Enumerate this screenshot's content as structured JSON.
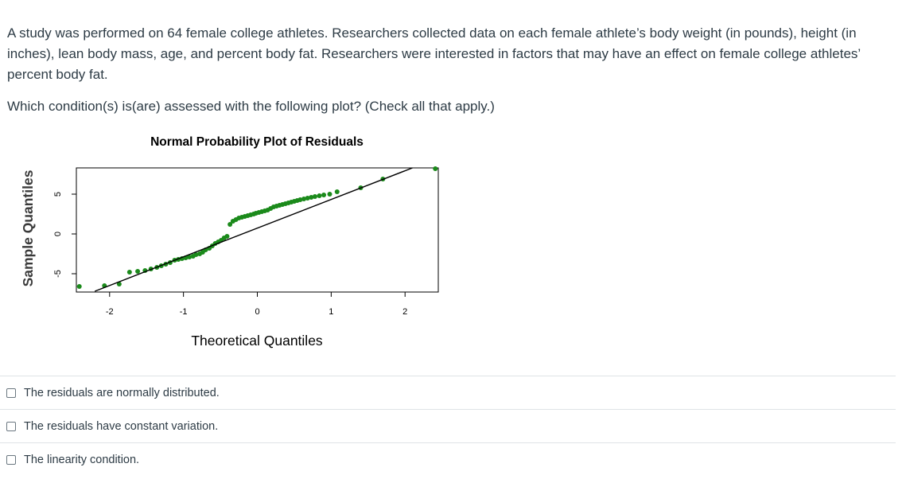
{
  "question": {
    "stem": "A study was performed on 64 female college athletes. Researchers collected data on each female athlete’s body weight (in pounds), height (in inches), lean body mass, age, and percent body fat. Researchers were interested in factors that may have an effect on female college athletes’ percent body fat.",
    "prompt": "Which condition(s) is(are) assessed with the following plot? (Check all that apply.)"
  },
  "answers": [
    {
      "label": "The residuals are normally distributed.",
      "checked": false
    },
    {
      "label": "The residuals have constant variation.",
      "checked": false
    },
    {
      "label": "The linearity condition.",
      "checked": false
    }
  ],
  "chart_data": {
    "type": "scatter",
    "title": "Normal Probability Plot of Residuals",
    "xlabel": "Theoretical Quantiles",
    "ylabel": "Sample Quantiles",
    "xlim": [
      -2.45,
      2.45
    ],
    "ylim": [
      -7.3,
      8.3
    ],
    "x_ticks": [
      "-2",
      "-1",
      "0",
      "1",
      "2"
    ],
    "x_tick_values": [
      -2,
      -1,
      0,
      1,
      2
    ],
    "y_ticks": [
      "-5",
      "0",
      "5"
    ],
    "y_tick_values": [
      -5,
      0,
      5
    ],
    "point_color": "#1b8a1b",
    "reference_line": {
      "x": [
        -2.2,
        2.1
      ],
      "y": [
        -7.2,
        8.3
      ]
    },
    "series": [
      {
        "x": [
          -2.41,
          -2.07,
          -1.87,
          -1.73,
          -1.62,
          -1.52,
          -1.44,
          -1.36,
          -1.3,
          -1.24,
          -1.18,
          -1.12,
          -1.07,
          -1.02,
          -0.97,
          -0.92,
          -0.87,
          -0.83,
          -0.78,
          -0.74,
          -0.7,
          -0.65,
          -0.61,
          -0.57,
          -0.53,
          -0.49,
          -0.45,
          -0.41,
          -0.37,
          -0.33,
          -0.29,
          -0.25,
          -0.21,
          -0.17,
          -0.13,
          -0.09,
          -0.05,
          -0.02,
          0.02,
          0.06,
          0.1,
          0.14,
          0.18,
          0.22,
          0.26,
          0.3,
          0.34,
          0.38,
          0.42,
          0.46,
          0.5,
          0.54,
          0.58,
          0.63,
          0.68,
          0.73,
          0.78,
          0.84,
          0.9,
          0.98,
          1.08,
          1.4,
          1.7,
          2.41
        ],
        "y": [
          -6.6,
          -6.5,
          -6.3,
          -4.8,
          -4.7,
          -4.6,
          -4.4,
          -4.2,
          -4.0,
          -3.8,
          -3.6,
          -3.3,
          -3.2,
          -3.1,
          -3.0,
          -2.9,
          -2.8,
          -2.6,
          -2.5,
          -2.3,
          -2.0,
          -1.8,
          -1.5,
          -1.2,
          -1.0,
          -0.8,
          -0.5,
          -0.3,
          1.2,
          1.6,
          1.8,
          2.0,
          2.1,
          2.2,
          2.3,
          2.4,
          2.5,
          2.6,
          2.7,
          2.8,
          2.9,
          3.0,
          3.2,
          3.4,
          3.5,
          3.6,
          3.7,
          3.8,
          3.9,
          4.0,
          4.1,
          4.2,
          4.3,
          4.4,
          4.5,
          4.6,
          4.7,
          4.8,
          4.9,
          5.0,
          5.3,
          5.8,
          6.9,
          8.2
        ]
      }
    ]
  }
}
